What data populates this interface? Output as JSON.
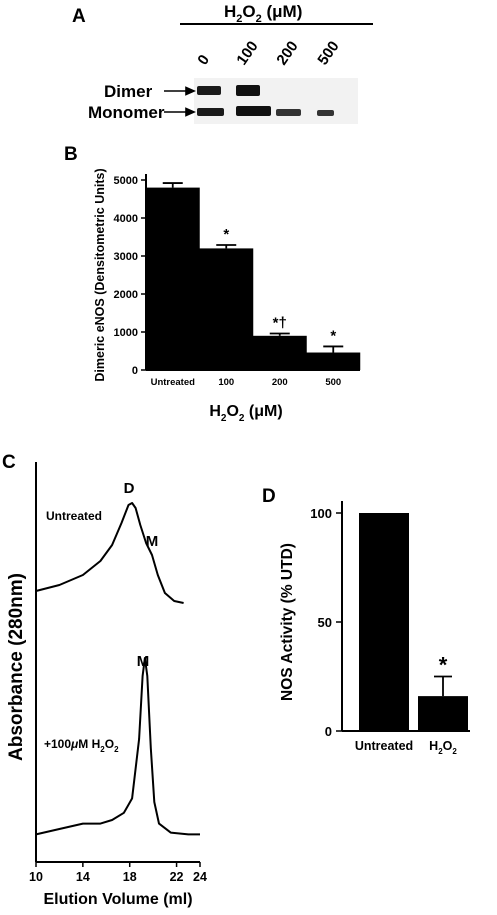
{
  "panels": {
    "a": {
      "letter": "A",
      "header_main": "H",
      "header_sub": "2",
      "header_mid": "O",
      "header_sub2": "2",
      "header_unit": " (μM)",
      "lanes": [
        "0",
        "100",
        "200",
        "500"
      ],
      "band_labels": [
        "Dimer",
        "Monomer"
      ]
    },
    "b": {
      "letter": "B",
      "xlabel_main": "H",
      "xlabel_sub": "2",
      "xlabel_mid": "O",
      "xlabel_sub2": "2",
      "xlabel_unit": " (μM)"
    },
    "c": {
      "letter": "C",
      "trace_top_label": "Untreated",
      "trace_bottom_label_pre": "+100",
      "trace_bottom_label_mu": "μ",
      "trace_bottom_label_post": "M H",
      "trace_bottom_label_sub": "2",
      "trace_bottom_label_mid": "O",
      "trace_bottom_label_sub2": "2",
      "peak_d": "D",
      "peak_m_top": "M",
      "peak_m_bottom": "M"
    },
    "d": {
      "letter": "D",
      "cat2_main": "H",
      "cat2_sub": "2",
      "cat2_mid": "O",
      "cat2_sub2": "2"
    }
  },
  "chart_data": [
    {
      "panel": "B",
      "type": "bar",
      "ylabel": "Dimeric eNOS (Densitometric Units)",
      "xlabel": "H2O2 (μM)",
      "categories": [
        "Untreated",
        "100",
        "200",
        "500"
      ],
      "values": [
        4800,
        3200,
        900,
        460
      ],
      "errors": [
        120,
        90,
        60,
        160
      ],
      "annotations": [
        "",
        "*",
        "*†",
        "*"
      ],
      "ylim": [
        0,
        5000
      ],
      "yticks": [
        0,
        1000,
        2000,
        3000,
        4000,
        5000
      ],
      "color": "#000000"
    },
    {
      "panel": "C",
      "type": "line",
      "ylabel": "Absorbance (280nm)",
      "xlabel": "Elution Volume (ml)",
      "xlim": [
        10,
        24
      ],
      "xticks": [
        10,
        14,
        18,
        22,
        24
      ],
      "series": [
        {
          "name": "Untreated",
          "x": [
            10.0,
            12.0,
            14.0,
            15.5,
            16.5,
            17.3,
            17.9,
            18.2,
            18.5,
            18.9,
            19.4,
            19.9,
            20.4,
            21.0,
            21.8,
            22.6
          ],
          "y": [
            0.12,
            0.18,
            0.28,
            0.42,
            0.58,
            0.8,
            0.98,
            1.0,
            0.95,
            0.78,
            0.6,
            0.48,
            0.28,
            0.1,
            0.02,
            0.0
          ]
        },
        {
          "name": "+100μM H2O2",
          "x": [
            10.0,
            12.0,
            14.0,
            15.5,
            16.5,
            17.5,
            18.2,
            18.8,
            19.1,
            19.3,
            19.5,
            19.8,
            20.1,
            20.5,
            21.5,
            23.0,
            24.0
          ],
          "y": [
            0.02,
            0.05,
            0.08,
            0.08,
            0.1,
            0.14,
            0.22,
            0.55,
            0.9,
            1.0,
            0.9,
            0.5,
            0.2,
            0.08,
            0.03,
            0.02,
            0.02
          ]
        }
      ]
    },
    {
      "panel": "D",
      "type": "bar",
      "ylabel": "NOS Activity (% UTD)",
      "categories": [
        "Untreated",
        "H2O2"
      ],
      "values": [
        100,
        16
      ],
      "errors": [
        0,
        9
      ],
      "annotations": [
        "",
        "*"
      ],
      "ylim": [
        0,
        100
      ],
      "yticks": [
        0,
        50,
        100
      ],
      "color": "#000000"
    }
  ]
}
